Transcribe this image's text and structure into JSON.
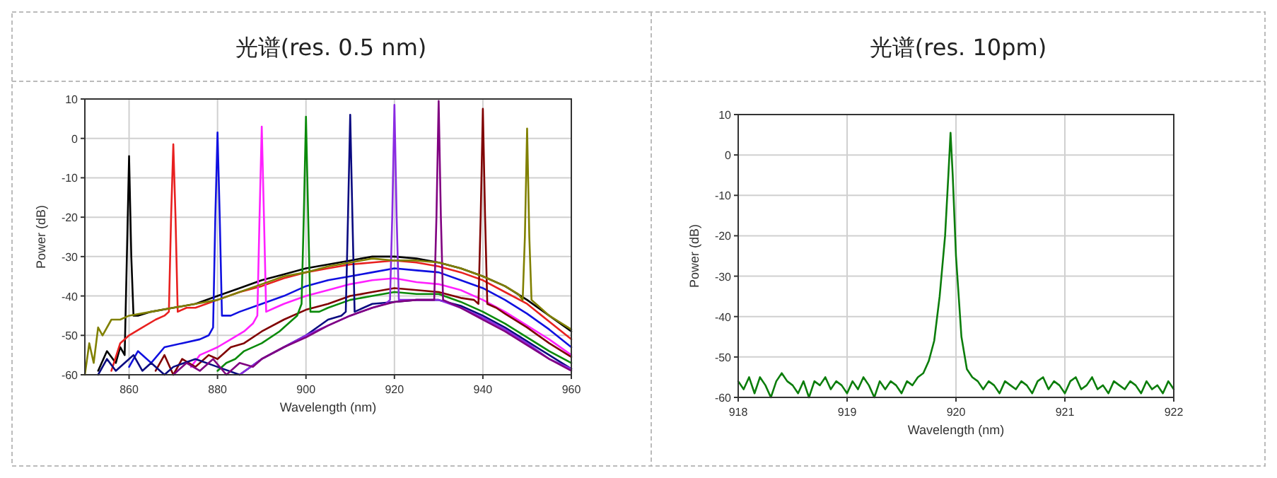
{
  "chart_data": [
    {
      "type": "line",
      "title": "光谱(res. 0.5 nm)",
      "xlabel": "Wavelength (nm)",
      "ylabel": "Power (dB)",
      "xlim": [
        850,
        960
      ],
      "ylim": [
        -60,
        10
      ],
      "xticks": [
        860,
        880,
        900,
        920,
        940,
        960
      ],
      "yticks": [
        -60,
        -50,
        -40,
        -30,
        -20,
        -10,
        0,
        10
      ],
      "grid": true,
      "series": [
        {
          "color": "#000000",
          "x": [
            853,
            855,
            857,
            858,
            859,
            859.5,
            860,
            860.5,
            861,
            862,
            865,
            870,
            875,
            880,
            885,
            890,
            895,
            900,
            905,
            910,
            915,
            920,
            925,
            930,
            935,
            940,
            945,
            950,
            955,
            960
          ],
          "values": [
            -59,
            -54,
            -57,
            -53,
            -55,
            -30,
            -4.5,
            -30,
            -45,
            -45,
            -44,
            -43,
            -42,
            -40,
            -38,
            -36,
            -34.5,
            -33,
            -32,
            -31,
            -30,
            -30,
            -30.5,
            -31.5,
            -33,
            -35,
            -37.5,
            -41,
            -45,
            -49
          ]
        },
        {
          "color": "#e8201f",
          "x": [
            856,
            858,
            860,
            863,
            866,
            868,
            869,
            869.5,
            870,
            870.5,
            871,
            873,
            875,
            880,
            885,
            890,
            895,
            900,
            905,
            910,
            915,
            920,
            925,
            930,
            935,
            940,
            945,
            950,
            955,
            960
          ],
          "values": [
            -59,
            -52,
            -50,
            -48,
            -46,
            -45,
            -44,
            -20,
            -1.5,
            -20,
            -44,
            -43,
            -43,
            -41,
            -39,
            -37.5,
            -35.5,
            -34,
            -33,
            -32,
            -31.5,
            -31,
            -31.5,
            -32.5,
            -34,
            -36,
            -39,
            -42,
            -46.5,
            -51
          ]
        },
        {
          "color": "#1010e0",
          "x": [
            860,
            862,
            865,
            868,
            872,
            876,
            878,
            879,
            879.5,
            880,
            880.5,
            881,
            883,
            885,
            890,
            895,
            900,
            905,
            910,
            915,
            920,
            925,
            930,
            935,
            940,
            945,
            950,
            955,
            960
          ],
          "values": [
            -58,
            -54,
            -57,
            -53,
            -52,
            -51,
            -50,
            -48,
            -20,
            1.5,
            -20,
            -45,
            -45,
            -44,
            -42,
            -40,
            -37.5,
            -36,
            -35,
            -34,
            -33,
            -33.5,
            -34,
            -36,
            -38,
            -41,
            -44.5,
            -48.5,
            -53
          ]
        },
        {
          "color": "#ff20ff",
          "x": [
            874,
            876,
            878,
            880,
            883,
            886,
            888,
            889,
            889.5,
            890,
            890.5,
            891,
            893,
            895,
            900,
            905,
            910,
            915,
            920,
            925,
            930,
            935,
            940,
            945,
            950,
            955,
            960
          ],
          "values": [
            -58,
            -55,
            -54,
            -53,
            -51,
            -49,
            -47,
            -45,
            -20,
            3,
            -20,
            -44,
            -43,
            -42,
            -40,
            -38.5,
            -37,
            -36,
            -35.5,
            -36.5,
            -37,
            -38.5,
            -41,
            -44,
            -47.5,
            -51,
            -55
          ]
        },
        {
          "color": "#800000",
          "x": [
            866,
            868,
            870,
            872,
            875,
            878,
            880,
            883,
            886,
            890,
            895,
            900,
            905,
            910,
            915,
            920,
            925,
            930,
            935,
            938,
            939,
            939.5,
            940,
            940.5,
            941,
            943,
            945,
            950,
            955,
            960
          ],
          "values": [
            -59,
            -55,
            -60,
            -56,
            -58,
            -55,
            -56,
            -53,
            -52,
            -49,
            -46,
            -43.5,
            -42,
            -40,
            -39,
            -38,
            -38.5,
            -39,
            -40.5,
            -41,
            -42,
            -20,
            7.5,
            -20,
            -42,
            -43,
            -44.5,
            -48,
            -52,
            -55.5
          ]
        },
        {
          "color": "#0a8a0a",
          "x": [
            880,
            882,
            884,
            886,
            890,
            894,
            897,
            898,
            899,
            899.5,
            900,
            900.5,
            901,
            903,
            905,
            910,
            915,
            920,
            925,
            930,
            935,
            940,
            945,
            950,
            955,
            960
          ],
          "values": [
            -59,
            -57,
            -56,
            -54,
            -52,
            -49,
            -46,
            -45,
            -42,
            -20,
            5.5,
            -20,
            -44,
            -44,
            -43,
            -41,
            -40,
            -39,
            -39.5,
            -39.5,
            -41.5,
            -44,
            -47,
            -50.5,
            -54,
            -57
          ]
        },
        {
          "color": "#0a0a80",
          "x": [
            853,
            855,
            857,
            859,
            861,
            863,
            865,
            868,
            870,
            875,
            880,
            885,
            890,
            895,
            900,
            905,
            908,
            909,
            909.5,
            910,
            910.5,
            911,
            913,
            915,
            920,
            925,
            930,
            935,
            940,
            945,
            950,
            955,
            960
          ],
          "values": [
            -60,
            -56,
            -59,
            -57,
            -55,
            -59,
            -57,
            -60,
            -58,
            -56,
            -58,
            -60,
            -56,
            -53,
            -50,
            -46,
            -45,
            -44,
            -20,
            6,
            -20,
            -44,
            -43,
            -42,
            -41.5,
            -41,
            -41,
            -42.5,
            -45,
            -48,
            -51.5,
            -55,
            -58.5
          ]
        },
        {
          "color": "#8a2be2",
          "x": [
            885,
            890,
            895,
            900,
            905,
            910,
            915,
            918,
            919,
            919.5,
            920,
            920.5,
            921,
            923,
            925,
            930,
            935,
            940,
            945,
            950,
            955,
            960
          ],
          "values": [
            -60,
            -56,
            -53,
            -50,
            -47.5,
            -45,
            -43,
            -42,
            -41,
            -20,
            8.5,
            -20,
            -41,
            -41,
            -41,
            -41,
            -43,
            -45.5,
            -48.5,
            -52,
            -56,
            -58.5
          ]
        },
        {
          "color": "#800080",
          "x": [
            870,
            873,
            876,
            879,
            882,
            885,
            888,
            890,
            895,
            900,
            905,
            910,
            915,
            920,
            925,
            928,
            929,
            929.5,
            930,
            930.5,
            931,
            933,
            935,
            940,
            945,
            950,
            955,
            960
          ],
          "values": [
            -60,
            -57,
            -59,
            -56,
            -60,
            -57,
            -58,
            -56,
            -53,
            -50.5,
            -47.5,
            -45,
            -43,
            -41.5,
            -41,
            -41,
            -41,
            -20,
            9.5,
            -20,
            -41,
            -42,
            -43,
            -46,
            -49,
            -52.5,
            -56,
            -59
          ]
        },
        {
          "color": "#808000",
          "x": [
            850,
            851,
            852,
            853,
            854,
            856,
            858,
            860,
            865,
            870,
            875,
            880,
            885,
            890,
            895,
            900,
            905,
            910,
            915,
            920,
            925,
            930,
            935,
            940,
            945,
            948,
            949,
            949.5,
            950,
            950.5,
            951,
            952,
            955,
            960
          ],
          "values": [
            -60,
            -52,
            -57,
            -48,
            -50,
            -46,
            -46,
            -45,
            -44,
            -43,
            -42,
            -41,
            -39,
            -37,
            -35,
            -34,
            -32.5,
            -31.5,
            -30.5,
            -31,
            -31,
            -31.5,
            -33,
            -35,
            -37.5,
            -39.5,
            -41,
            -25,
            2.5,
            -25,
            -41,
            -42,
            -45,
            -48.5
          ]
        }
      ]
    },
    {
      "type": "line",
      "title": "光谱(res. 10pm)",
      "xlabel": "Wavelength (nm)",
      "ylabel": "Power (dB)",
      "xlim": [
        918,
        922
      ],
      "ylim": [
        -60,
        10
      ],
      "xticks": [
        918,
        919,
        920,
        921,
        922
      ],
      "yticks": [
        -60,
        -50,
        -40,
        -30,
        -20,
        -10,
        0,
        10
      ],
      "grid": true,
      "series": [
        {
          "color": "#0b7d0b",
          "x": [
            918,
            918.05,
            918.1,
            918.15,
            918.2,
            918.25,
            918.3,
            918.35,
            918.4,
            918.45,
            918.5,
            918.55,
            918.6,
            918.65,
            918.7,
            918.75,
            918.8,
            918.85,
            918.9,
            918.95,
            919,
            919.05,
            919.1,
            919.15,
            919.2,
            919.25,
            919.3,
            919.35,
            919.4,
            919.45,
            919.5,
            919.55,
            919.6,
            919.65,
            919.7,
            919.75,
            919.8,
            919.85,
            919.9,
            919.93,
            919.95,
            919.97,
            920,
            920.05,
            920.1,
            920.15,
            920.2,
            920.25,
            920.3,
            920.35,
            920.4,
            920.45,
            920.5,
            920.55,
            920.6,
            920.65,
            920.7,
            920.75,
            920.8,
            920.85,
            920.9,
            920.95,
            921,
            921.05,
            921.1,
            921.15,
            921.2,
            921.25,
            921.3,
            921.35,
            921.4,
            921.45,
            921.5,
            921.55,
            921.6,
            921.65,
            921.7,
            921.75,
            921.8,
            921.85,
            921.9,
            921.95,
            922
          ],
          "values": [
            -56,
            -58,
            -55,
            -59,
            -55,
            -57,
            -60,
            -56,
            -54,
            -56,
            -57,
            -59,
            -56,
            -60,
            -56,
            -57,
            -55,
            -58,
            -56,
            -57,
            -59,
            -56,
            -58,
            -55,
            -57,
            -60,
            -56,
            -58,
            -56,
            -57,
            -59,
            -56,
            -57,
            -55,
            -54,
            -51,
            -46,
            -35,
            -20,
            -5,
            5.5,
            -5,
            -25,
            -45,
            -53,
            -55,
            -56,
            -58,
            -56,
            -57,
            -59,
            -56,
            -57,
            -58,
            -56,
            -57,
            -59,
            -56,
            -55,
            -58,
            -56,
            -57,
            -59,
            -56,
            -55,
            -58,
            -57,
            -55,
            -58,
            -57,
            -59,
            -56,
            -57,
            -58,
            -56,
            -57,
            -59,
            -56,
            -58,
            -57,
            -59,
            -56,
            -58
          ]
        }
      ]
    }
  ]
}
